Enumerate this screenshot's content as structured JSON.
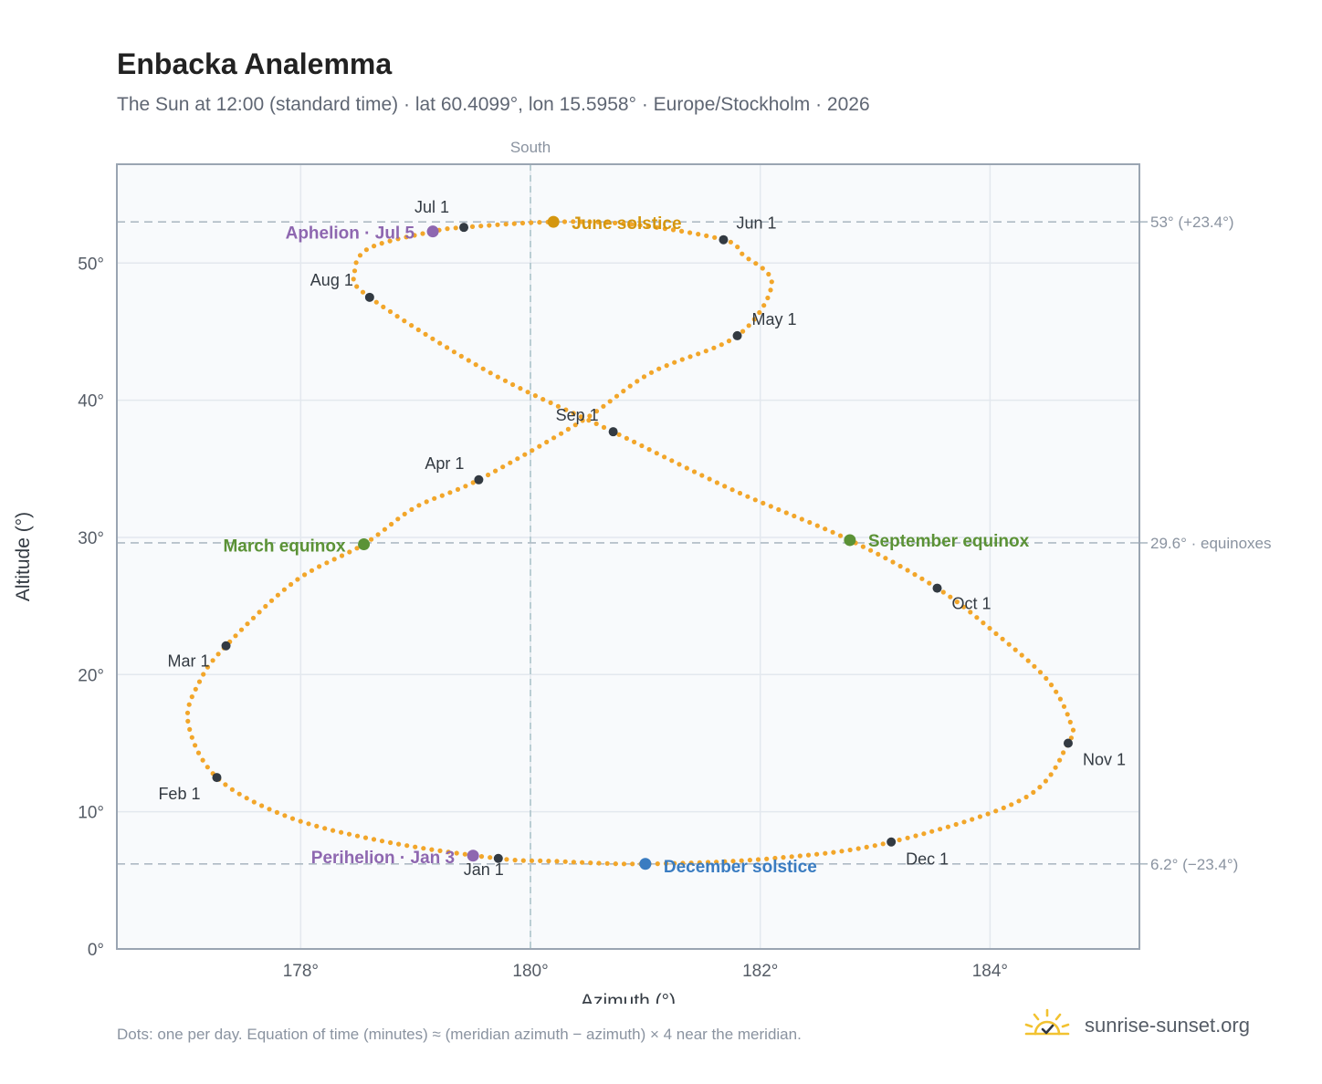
{
  "header": {
    "title": "Enbacka Analemma",
    "subtitle": "The Sun at 12:00 (standard time) · lat 60.4099°, lon 15.5958° · Europe/Stockholm · 2026"
  },
  "footer": {
    "note": "Dots: one per day. Equation of time (minutes) ≈ (meridian azimuth − azimuth) × 4 near the meridian.",
    "brand": "sunrise-sunset.org"
  },
  "colors": {
    "path": "#f2a62a",
    "month_marker": "#333a42",
    "solstice_june": "#d4960f",
    "equinox": "#5b9236",
    "solstice_december": "#3a7cc1",
    "apsis": "#8e67b0",
    "plot_bg": "#f8fafc",
    "grid": "#e3e8ee",
    "reference_line": "#aebac4"
  },
  "chart_data": {
    "type": "scatter",
    "xlabel": "Azimuth (°)",
    "ylabel": "Altitude (°)",
    "xlim": [
      176.4,
      185.3
    ],
    "ylim": [
      0,
      57.2
    ],
    "xticks": [
      178,
      180,
      182,
      184
    ],
    "yticks": [
      0,
      10,
      20,
      30,
      40,
      50
    ],
    "xtick_labels": [
      "178°",
      "180°",
      "182°",
      "184°"
    ],
    "ytick_labels": [
      "0°",
      "10°",
      "20°",
      "30°",
      "40°",
      "50°"
    ],
    "grid": true,
    "south_line": {
      "x": 180,
      "label": "South"
    },
    "reference_lines": [
      {
        "y": 53.0,
        "label": "53° (+23.4°)"
      },
      {
        "y": 29.6,
        "label": "29.6° · equinoxes"
      },
      {
        "y": 6.2,
        "label": "6.2° (−23.4°)"
      }
    ],
    "daily_path": {
      "note": "one point per day",
      "points": [
        [
          179.72,
          6.6
        ],
        [
          178.75,
          7.8
        ],
        [
          177.9,
          9.6
        ],
        [
          177.27,
          12.5
        ],
        [
          177.02,
          16.5
        ],
        [
          177.12,
          19.5
        ],
        [
          177.35,
          22.1
        ],
        [
          177.95,
          26.8
        ],
        [
          178.55,
          29.5
        ],
        [
          179.0,
          32.2
        ],
        [
          179.55,
          34.2
        ],
        [
          180.45,
          38.5
        ],
        [
          181.05,
          42.0
        ],
        [
          181.8,
          44.7
        ],
        [
          182.1,
          48.5
        ],
        [
          181.85,
          50.6
        ],
        [
          181.68,
          51.7
        ],
        [
          180.9,
          52.8
        ],
        [
          180.2,
          53.0
        ],
        [
          179.42,
          52.6
        ],
        [
          179.15,
          52.3
        ],
        [
          178.6,
          51.1
        ],
        [
          178.47,
          49.3
        ],
        [
          178.6,
          47.5
        ],
        [
          179.65,
          42.0
        ],
        [
          180.72,
          37.7
        ],
        [
          181.75,
          33.5
        ],
        [
          182.78,
          29.8
        ],
        [
          183.54,
          26.3
        ],
        [
          184.05,
          23.0
        ],
        [
          184.5,
          19.6
        ],
        [
          184.7,
          16.5
        ],
        [
          184.68,
          15.0
        ],
        [
          184.3,
          11.0
        ],
        [
          183.14,
          7.8
        ],
        [
          182.1,
          6.6
        ],
        [
          181.0,
          6.2
        ],
        [
          180.2,
          6.4
        ],
        [
          179.72,
          6.6
        ]
      ]
    },
    "month_markers": [
      {
        "label": "Jan 1",
        "x": 179.72,
        "y": 6.6
      },
      {
        "label": "Feb 1",
        "x": 177.27,
        "y": 12.5
      },
      {
        "label": "Mar 1",
        "x": 177.35,
        "y": 22.1
      },
      {
        "label": "Apr 1",
        "x": 179.55,
        "y": 34.2
      },
      {
        "label": "May 1",
        "x": 181.8,
        "y": 44.7
      },
      {
        "label": "Jun 1",
        "x": 181.68,
        "y": 51.7
      },
      {
        "label": "Jul 1",
        "x": 179.42,
        "y": 52.6
      },
      {
        "label": "Aug 1",
        "x": 178.6,
        "y": 47.5
      },
      {
        "label": "Sep 1",
        "x": 180.72,
        "y": 37.7
      },
      {
        "label": "Oct 1",
        "x": 183.54,
        "y": 26.3
      },
      {
        "label": "Nov 1",
        "x": 184.68,
        "y": 15.0
      },
      {
        "label": "Dec 1",
        "x": 183.14,
        "y": 7.8
      }
    ],
    "events": [
      {
        "label": "June solstice",
        "x": 180.2,
        "y": 53.0,
        "color_key": "solstice_june"
      },
      {
        "label": "Aphelion · Jul 5",
        "x": 179.15,
        "y": 52.3,
        "color_key": "apsis"
      },
      {
        "label": "March equinox",
        "x": 178.55,
        "y": 29.5,
        "color_key": "equinox"
      },
      {
        "label": "September equinox",
        "x": 182.78,
        "y": 29.8,
        "color_key": "equinox"
      },
      {
        "label": "Perihelion · Jan 3",
        "x": 179.5,
        "y": 6.8,
        "color_key": "apsis"
      },
      {
        "label": "December solstice",
        "x": 181.0,
        "y": 6.2,
        "color_key": "solstice_december"
      }
    ]
  }
}
